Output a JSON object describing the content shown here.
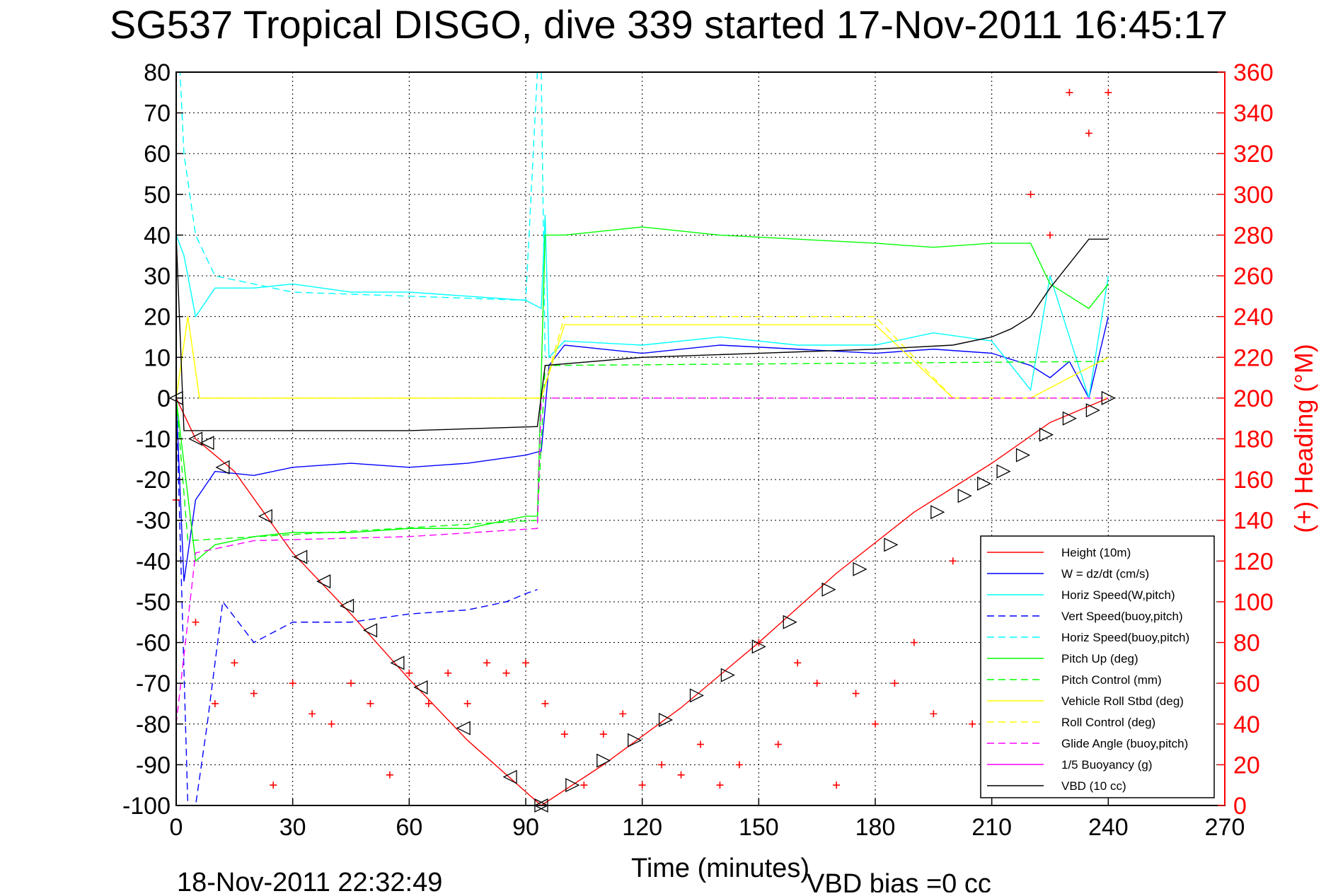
{
  "chart_data": {
    "type": "line",
    "title": "SG537 Tropical DISGO, dive 339 started 17-Nov-2011 16:45:17",
    "xlabel": "Time (minutes)",
    "ylabel_left": "",
    "ylabel_right": "(+) Heading (°M)",
    "xlim": [
      0,
      270
    ],
    "ylim_left": [
      -100,
      80
    ],
    "ylim_right": [
      0,
      360
    ],
    "xticks": [
      "0",
      "30",
      "60",
      "90",
      "120",
      "150",
      "180",
      "210",
      "240",
      "270"
    ],
    "yticks_left": [
      "80",
      "70",
      "60",
      "50",
      "40",
      "30",
      "20",
      "10",
      "0",
      "-10",
      "-20",
      "-30",
      "-40",
      "-50",
      "-60",
      "-70",
      "-80",
      "-90",
      "-100"
    ],
    "yticks_right": [
      "360",
      "340",
      "320",
      "300",
      "280",
      "260",
      "240",
      "220",
      "200",
      "180",
      "160",
      "140",
      "120",
      "100",
      "80",
      "60",
      "40",
      "20",
      "0"
    ],
    "grid": true,
    "legend_position": "bottom-right",
    "footer_left": "18-Nov-2011 22:32:49",
    "footer_right": "VBD bias =0 cc",
    "series": [
      {
        "name": "Height (10m)",
        "color": "#ff0000",
        "style": "solid",
        "axis": "left",
        "x": [
          0,
          5,
          15,
          30,
          45,
          60,
          75,
          94,
          110,
          130,
          150,
          170,
          190,
          210,
          225,
          240
        ],
        "y": [
          0,
          -10,
          -18,
          -38,
          -53,
          -69,
          -84,
          -100,
          -90,
          -76,
          -60,
          -43,
          -28,
          -16,
          -6,
          0
        ]
      },
      {
        "name": "W = dz/dt (cm/s)",
        "color": "#0000ff",
        "style": "solid",
        "axis": "left",
        "x": [
          0,
          2,
          5,
          10,
          20,
          30,
          45,
          60,
          75,
          90,
          94,
          96,
          100,
          120,
          140,
          160,
          180,
          195,
          210,
          220,
          225,
          230,
          235,
          240
        ],
        "y": [
          0,
          -45,
          -25,
          -18,
          -19,
          -17,
          -16,
          -17,
          -16,
          -14,
          -13,
          8,
          13,
          11,
          13,
          12,
          11,
          12,
          11,
          8,
          5,
          9,
          0,
          20
        ]
      },
      {
        "name": "Horiz Speed(W,pitch)",
        "color": "#00ffff",
        "style": "solid",
        "axis": "left",
        "x": [
          0,
          2,
          5,
          10,
          20,
          30,
          45,
          60,
          75,
          90,
          94,
          95,
          96,
          100,
          120,
          140,
          160,
          180,
          195,
          210,
          220,
          225,
          230,
          235,
          240
        ],
        "y": [
          40,
          35,
          20,
          27,
          27,
          28,
          26,
          26,
          25,
          24,
          22,
          45,
          10,
          14,
          13,
          15,
          13,
          13,
          16,
          14,
          2,
          30,
          15,
          0,
          30
        ]
      },
      {
        "name": "Vert Speed(buoy,pitch)",
        "color": "#0000ff",
        "style": "dashed",
        "axis": "left",
        "x": [
          0,
          3,
          5,
          8,
          12,
          20,
          30,
          45,
          60,
          75,
          85,
          90,
          93
        ],
        "y": [
          0,
          -100,
          -100,
          -80,
          -50,
          -60,
          -55,
          -55,
          -53,
          -52,
          -50,
          -48,
          -47
        ]
      },
      {
        "name": "Horiz Speed(buoy,pitch)",
        "color": "#00ffff",
        "style": "dashed",
        "axis": "left",
        "x": [
          0,
          1,
          2,
          5,
          10,
          30,
          60,
          90,
          93,
          94,
          95
        ],
        "y": [
          80,
          80,
          60,
          40,
          30,
          26,
          25,
          24,
          80,
          80,
          10
        ]
      },
      {
        "name": "Pitch Up (deg)",
        "color": "#00ff00",
        "style": "solid",
        "axis": "left",
        "x": [
          0,
          5,
          10,
          20,
          30,
          45,
          60,
          75,
          90,
          93,
          95,
          100,
          120,
          140,
          160,
          180,
          195,
          210,
          220,
          225,
          235,
          240
        ],
        "y": [
          0,
          -40,
          -36,
          -34,
          -33,
          -33,
          -32,
          -32,
          -29,
          -29,
          40,
          40,
          42,
          40,
          39,
          38,
          37,
          38,
          38,
          28,
          22,
          28
        ]
      },
      {
        "name": "Pitch Control (mm)",
        "color": "#00ff00",
        "style": "dashed",
        "axis": "left",
        "x": [
          0,
          3,
          93,
          95,
          240
        ],
        "y": [
          0,
          -35,
          -30,
          8,
          9
        ]
      },
      {
        "name": "Vehicle Roll Stbd (deg)",
        "color": "#ffff00",
        "style": "solid",
        "axis": "left",
        "x": [
          0,
          3,
          6,
          10,
          30,
          60,
          90,
          94,
          100,
          120,
          150,
          180,
          200,
          220,
          230,
          240
        ],
        "y": [
          0,
          20,
          0,
          0,
          0,
          0,
          0,
          0,
          18,
          18,
          18,
          18,
          0,
          0,
          5,
          10
        ]
      },
      {
        "name": "Roll Control (deg)",
        "color": "#ffff00",
        "style": "dashed",
        "axis": "left",
        "x": [
          0,
          3,
          6,
          10,
          30,
          60,
          90,
          94,
          100,
          120,
          150,
          180,
          200,
          220,
          240
        ],
        "y": [
          0,
          20,
          0,
          0,
          0,
          0,
          0,
          0,
          20,
          20,
          20,
          20,
          0,
          0,
          0
        ]
      },
      {
        "name": "Glide Angle (buoy,pitch)",
        "color": "#ff00ff",
        "style": "dashed",
        "axis": "left",
        "x": [
          0,
          5,
          20,
          60,
          93,
          94,
          240
        ],
        "y": [
          -80,
          -38,
          -35,
          -34,
          -32,
          0,
          0
        ]
      },
      {
        "name": "1/5 Buoyancy (g)",
        "color": "#ff00ff",
        "style": "solid",
        "axis": "left",
        "x": [
          0,
          93,
          94,
          240
        ],
        "y": [
          -100,
          -100,
          -100,
          -100
        ]
      },
      {
        "name": "VBD (10 cc)",
        "color": "#000000",
        "style": "solid",
        "axis": "left",
        "x": [
          0,
          2,
          30,
          60,
          93,
          95,
          120,
          150,
          180,
          200,
          210,
          215,
          220,
          225,
          235,
          240
        ],
        "y": [
          40,
          -8,
          -8,
          -8,
          -7,
          8,
          10,
          11,
          12,
          13,
          15,
          17,
          20,
          27,
          39,
          39
        ]
      },
      {
        "name": "Heading",
        "color": "#ff0000",
        "style": "markers",
        "marker": "+",
        "axis": "right",
        "x": [
          0,
          5,
          10,
          15,
          20,
          25,
          30,
          35,
          40,
          45,
          50,
          55,
          60,
          65,
          70,
          75,
          80,
          85,
          90,
          95,
          100,
          105,
          110,
          115,
          120,
          125,
          130,
          135,
          140,
          145,
          150,
          155,
          160,
          165,
          170,
          175,
          180,
          185,
          190,
          195,
          200,
          205,
          210,
          215,
          220,
          225,
          230,
          235,
          240
        ],
        "y": [
          150,
          90,
          50,
          70,
          55,
          10,
          60,
          45,
          40,
          60,
          50,
          15,
          65,
          50,
          65,
          50,
          70,
          65,
          70,
          50,
          35,
          10,
          35,
          45,
          10,
          20,
          15,
          30,
          10,
          20,
          80,
          30,
          70,
          60,
          10,
          55,
          40,
          60,
          80,
          45,
          120,
          40,
          50,
          60,
          300,
          280,
          350,
          330,
          350
        ]
      }
    ],
    "height_markers": {
      "descent": {
        "x": [
          0,
          5,
          8,
          12,
          23,
          32,
          38,
          44,
          50,
          57,
          63,
          74,
          86,
          94
        ],
        "y": [
          0,
          -10,
          -11,
          -17,
          -29,
          -39,
          -45,
          -51,
          -57,
          -65,
          -71,
          -81,
          -93,
          -100
        ]
      },
      "ascent": {
        "x": [
          94,
          102,
          110,
          118,
          126,
          134,
          142,
          150,
          158,
          168,
          176,
          184,
          196,
          203,
          208,
          213,
          218,
          224,
          230,
          236,
          240
        ],
        "y": [
          -100,
          -95,
          -89,
          -84,
          -79,
          -73,
          -68,
          -61,
          -55,
          -47,
          -42,
          -36,
          -28,
          -24,
          -21,
          -18,
          -14,
          -9,
          -5,
          -3,
          0
        ]
      }
    }
  }
}
